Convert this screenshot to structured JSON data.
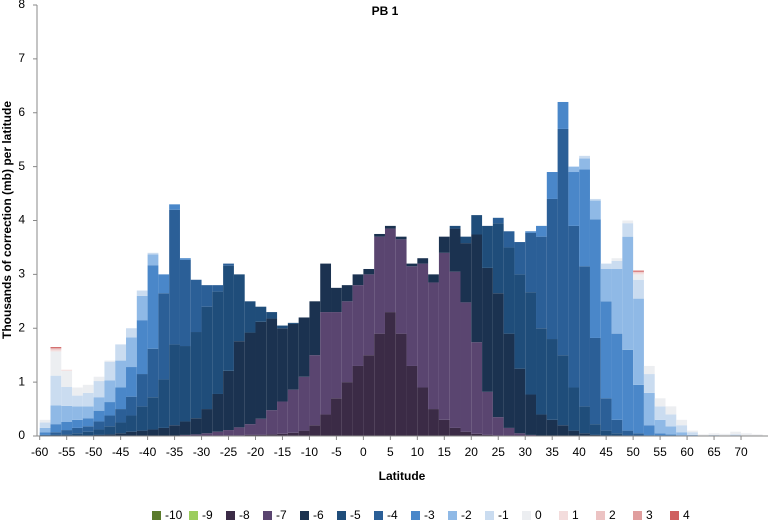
{
  "chart_data": {
    "type": "histogram",
    "title": "PB 1",
    "x_label": "Latitude",
    "y_label": "Thousands of correction (mb) per latitude",
    "bins": [
      -60,
      -58,
      -56,
      -54,
      -52,
      -50,
      -48,
      -46,
      -44,
      -42,
      -40,
      -38,
      -36,
      -34,
      -32,
      -30,
      -28,
      -26,
      -24,
      -22,
      -20,
      -18,
      -16,
      -14,
      -12,
      -10,
      -8,
      -6,
      -4,
      -2,
      0,
      2,
      4,
      6,
      8,
      10,
      12,
      14,
      16,
      18,
      20,
      22,
      24,
      26,
      28,
      30,
      32,
      34,
      36,
      38,
      40,
      42,
      44,
      46,
      48,
      50,
      52,
      54,
      56,
      58,
      60,
      62,
      64,
      66,
      68,
      70,
      72,
      74
    ],
    "stacked": true,
    "series": [
      {
        "name": "-10",
        "color": "#5b7b2c",
        "values": [
          0,
          0,
          0,
          0,
          0,
          0,
          0,
          0,
          0,
          0,
          0,
          0,
          0,
          0,
          0,
          0,
          0,
          0,
          0,
          0,
          0,
          0,
          0,
          0,
          0,
          0,
          0,
          0,
          0,
          0,
          0,
          0,
          0,
          0,
          0,
          0,
          0,
          0,
          0,
          0,
          0,
          0,
          0,
          0,
          0,
          0,
          0,
          0,
          0,
          0,
          0,
          0,
          0,
          0,
          0,
          0,
          0,
          0,
          0,
          0,
          0,
          0,
          0,
          0,
          0,
          0,
          0
        ]
      },
      {
        "name": "-9",
        "color": "#9ccd5e",
        "values": [
          0,
          0,
          0,
          0,
          0,
          0,
          0,
          0,
          0,
          0,
          0,
          0,
          0,
          0,
          0,
          0,
          0,
          0,
          0,
          0,
          0,
          0,
          0,
          0,
          0,
          0,
          0,
          0,
          0,
          0,
          0,
          0,
          0,
          0,
          0,
          0,
          0,
          0,
          0,
          0,
          0,
          0,
          0,
          0,
          0,
          0,
          0,
          0,
          0,
          0,
          0,
          0,
          0,
          0,
          0,
          0,
          0,
          0,
          0,
          0,
          0,
          0,
          0,
          0,
          0,
          0,
          0
        ]
      },
      {
        "name": "-8",
        "color": "#3b2b46",
        "values": [
          0,
          0,
          0,
          0,
          0,
          0,
          0,
          0,
          0,
          0,
          0,
          0,
          0,
          0,
          0,
          0,
          0,
          0.01,
          0.01,
          0.02,
          0.02,
          0.03,
          0.04,
          0.06,
          0.1,
          0.2,
          0.4,
          0.7,
          1.0,
          1.3,
          1.5,
          1.9,
          2.3,
          1.9,
          1.3,
          0.9,
          0.5,
          0.3,
          0.15,
          0.08,
          0.04,
          0.02,
          0,
          0,
          0,
          0,
          0,
          0,
          0,
          0,
          0,
          0,
          0,
          0,
          0,
          0,
          0,
          0,
          0,
          0,
          0,
          0,
          0,
          0,
          0,
          0,
          0
        ]
      },
      {
        "name": "-7",
        "color": "#5a4570",
        "values": [
          0,
          0,
          0,
          0,
          0,
          0,
          0,
          0,
          0,
          0,
          0,
          0,
          0,
          0.02,
          0.03,
          0.05,
          0.08,
          0.1,
          0.15,
          0.2,
          0.3,
          0.45,
          0.6,
          0.8,
          1.0,
          1.3,
          1.9,
          1.6,
          1.5,
          1.5,
          1.5,
          1.8,
          1.55,
          1.75,
          1.85,
          2.3,
          2.35,
          3.1,
          2.9,
          2.4,
          1.7,
          0.8,
          0.35,
          0.15,
          0.05,
          0.02,
          0,
          0,
          0,
          0,
          0,
          0,
          0,
          0,
          0,
          0,
          0,
          0,
          0,
          0,
          0,
          0,
          0,
          0,
          0,
          0,
          0
        ]
      },
      {
        "name": "-6",
        "color": "#1b3250",
        "values": [
          0,
          0,
          0,
          0,
          0,
          0.02,
          0.03,
          0.05,
          0.08,
          0.1,
          0.12,
          0.15,
          0.2,
          0.25,
          0.3,
          0.45,
          0.7,
          1.1,
          1.6,
          1.7,
          1.8,
          1.7,
          1.36,
          1.22,
          1.1,
          1.0,
          0.9,
          0.45,
          0.3,
          0.2,
          0.1,
          0.05,
          0.05,
          0.05,
          0.05,
          0.1,
          0.15,
          0.3,
          0.8,
          1.1,
          2.0,
          2.3,
          2.3,
          1.75,
          1.2,
          0.75,
          0.4,
          0.3,
          0.2,
          0.1,
          0.05,
          0.02,
          0,
          0,
          0,
          0,
          0,
          0,
          0,
          0,
          0,
          0,
          0,
          0,
          0,
          0,
          0
        ]
      },
      {
        "name": "-5",
        "color": "#1f4d7a",
        "values": [
          0,
          0.02,
          0.03,
          0.05,
          0.08,
          0.1,
          0.15,
          0.2,
          0.3,
          0.45,
          0.6,
          0.9,
          1.5,
          1.4,
          1.6,
          1.9,
          1.9,
          1.95,
          1.24,
          0.58,
          0.28,
          0.12,
          0.05,
          0.02,
          0,
          0,
          0,
          0,
          0,
          0,
          0,
          0,
          0,
          0,
          0,
          0,
          0,
          0,
          0.05,
          0.12,
          0.36,
          0.78,
          1.3,
          1.6,
          1.75,
          1.9,
          1.6,
          1.5,
          1.3,
          0.8,
          0.5,
          0.2,
          0.1,
          0.05,
          0,
          0,
          0,
          0,
          0,
          0,
          0,
          0,
          0,
          0,
          0,
          0,
          0
        ]
      },
      {
        "name": "-4",
        "color": "#2b5f97",
        "values": [
          0.02,
          0.05,
          0.08,
          0.1,
          0.1,
          0.15,
          0.2,
          0.25,
          0.35,
          0.6,
          0.9,
          1.6,
          2.5,
          1.6,
          0.97,
          0.4,
          0.12,
          0.04,
          0,
          0,
          0,
          0,
          0,
          0,
          0,
          0,
          0,
          0,
          0,
          0,
          0,
          0,
          0,
          0,
          0,
          0,
          0,
          0,
          0,
          0,
          0,
          0,
          0.1,
          0.3,
          0.6,
          1.1,
          1.7,
          2.6,
          4.2,
          3.0,
          2.6,
          1.6,
          0.6,
          0.25,
          0.1,
          0.05,
          0,
          0,
          0,
          0,
          0,
          0,
          0,
          0,
          0,
          0,
          0
        ]
      },
      {
        "name": "-3",
        "color": "#4a87c9",
        "values": [
          0.05,
          0.15,
          0.15,
          0.15,
          0.15,
          0.2,
          0.25,
          0.4,
          0.55,
          1.0,
          1.55,
          0.35,
          0.1,
          0.03,
          0,
          0,
          0,
          0,
          0,
          0,
          0,
          0,
          0,
          0,
          0,
          0,
          0,
          0,
          0,
          0,
          0,
          0,
          0,
          0,
          0,
          0,
          0,
          0,
          0,
          0,
          0,
          0,
          0,
          0,
          0,
          0.03,
          0.2,
          0.5,
          0.5,
          1.0,
          1.8,
          2.2,
          1.8,
          1.6,
          1.5,
          0.9,
          0.2,
          0.05,
          0.03,
          0,
          0,
          0,
          0,
          0,
          0,
          0,
          0
        ]
      },
      {
        "name": "-2",
        "color": "#8fb9e6",
        "values": [
          0.08,
          0.35,
          0.3,
          0.25,
          0.22,
          0.25,
          0.4,
          0.5,
          0.55,
          0.45,
          0.2,
          0,
          0,
          0,
          0,
          0,
          0,
          0,
          0,
          0,
          0,
          0,
          0,
          0,
          0,
          0,
          0,
          0,
          0,
          0,
          0,
          0,
          0,
          0,
          0,
          0,
          0,
          0,
          0,
          0,
          0,
          0,
          0,
          0,
          0,
          0,
          0,
          0,
          0,
          0.1,
          0.2,
          0.35,
          0.6,
          1.2,
          2.1,
          1.6,
          0.6,
          0.25,
          0.15,
          0.07,
          0.02,
          0,
          0,
          0,
          0,
          0,
          0
        ]
      },
      {
        "name": "-1",
        "color": "#cadcf0",
        "values": [
          0.1,
          0.55,
          0.35,
          0.2,
          0.25,
          0.3,
          0.35,
          0.3,
          0.17,
          0.1,
          0.03,
          0,
          0,
          0,
          0,
          0,
          0,
          0,
          0,
          0,
          0,
          0,
          0,
          0,
          0,
          0,
          0,
          0,
          0,
          0,
          0,
          0,
          0,
          0,
          0,
          0,
          0,
          0,
          0,
          0,
          0,
          0,
          0,
          0,
          0,
          0,
          0,
          0,
          0,
          0,
          0.05,
          0.03,
          0.1,
          0.15,
          0.25,
          0.35,
          0.35,
          0.25,
          0.22,
          0.13,
          0.05,
          0.01,
          0.02,
          0,
          0.03,
          0,
          0
        ]
      },
      {
        "name": "0",
        "color": "#eceef1",
        "values": [
          0.05,
          0.45,
          0.3,
          0.15,
          0.15,
          0.08,
          0.02,
          0,
          0,
          0,
          0,
          0,
          0,
          0,
          0,
          0,
          0,
          0,
          0,
          0,
          0,
          0,
          0,
          0,
          0,
          0,
          0,
          0,
          0,
          0,
          0,
          0,
          0,
          0,
          0,
          0,
          0,
          0,
          0,
          0,
          0,
          0,
          0,
          0,
          0,
          0,
          0,
          0,
          0,
          0,
          0,
          0,
          0,
          0.05,
          0.05,
          0.1,
          0.15,
          0.15,
          0.15,
          0.1,
          0.03,
          0.02,
          0.03,
          0.04,
          0.05,
          0.05,
          0.03
        ]
      },
      {
        "name": "1",
        "color": "#f3dcdc",
        "values": [
          0,
          0.03,
          0.02,
          0,
          0,
          0,
          0,
          0,
          0,
          0,
          0,
          0,
          0,
          0,
          0,
          0,
          0,
          0,
          0,
          0,
          0,
          0,
          0,
          0,
          0,
          0,
          0,
          0,
          0,
          0,
          0,
          0,
          0,
          0,
          0,
          0,
          0,
          0,
          0,
          0,
          0,
          0,
          0,
          0,
          0,
          0,
          0,
          0,
          0,
          0,
          0,
          0,
          0,
          0,
          0,
          0.03,
          0,
          0,
          0,
          0,
          0,
          0,
          0,
          0,
          0,
          0,
          0
        ]
      },
      {
        "name": "2",
        "color": "#ecc3c3",
        "values": [
          0,
          0.02,
          0,
          0,
          0,
          0,
          0,
          0,
          0,
          0,
          0,
          0,
          0,
          0,
          0,
          0,
          0,
          0,
          0,
          0,
          0,
          0,
          0,
          0,
          0,
          0,
          0,
          0,
          0,
          0,
          0,
          0,
          0,
          0,
          0,
          0,
          0,
          0,
          0,
          0,
          0,
          0,
          0,
          0,
          0,
          0,
          0,
          0,
          0,
          0,
          0,
          0,
          0,
          0,
          0,
          0.02,
          0,
          0,
          0,
          0,
          0,
          0,
          0,
          0,
          0,
          0,
          0
        ]
      },
      {
        "name": "3",
        "color": "#e09e9e",
        "values": [
          0,
          0.01,
          0,
          0,
          0,
          0,
          0,
          0,
          0,
          0,
          0,
          0,
          0,
          0,
          0,
          0,
          0,
          0,
          0,
          0,
          0,
          0,
          0,
          0,
          0,
          0,
          0,
          0,
          0,
          0,
          0,
          0,
          0,
          0,
          0,
          0,
          0,
          0,
          0,
          0,
          0,
          0,
          0,
          0,
          0,
          0,
          0,
          0,
          0,
          0,
          0,
          0,
          0,
          0,
          0,
          0,
          0,
          0,
          0,
          0,
          0,
          0,
          0,
          0,
          0,
          0,
          0
        ]
      },
      {
        "name": "4",
        "color": "#cf5f5f",
        "values": [
          0,
          0.02,
          0,
          0,
          0,
          0,
          0,
          0,
          0,
          0,
          0,
          0,
          0,
          0,
          0,
          0,
          0,
          0,
          0,
          0,
          0,
          0,
          0,
          0,
          0,
          0,
          0,
          0,
          0,
          0,
          0,
          0,
          0,
          0,
          0,
          0,
          0,
          0,
          0,
          0,
          0,
          0,
          0,
          0,
          0,
          0,
          0,
          0,
          0,
          0,
          0,
          0,
          0,
          0,
          0,
          0.02,
          0,
          0,
          0,
          0,
          0,
          0,
          0,
          0,
          0,
          0,
          0
        ]
      }
    ],
    "xlim": [
      -60.5,
      75
    ],
    "xticks": [
      -60,
      -55,
      -50,
      -45,
      -40,
      -35,
      -30,
      -25,
      -20,
      -15,
      -10,
      -5,
      0,
      5,
      10,
      15,
      20,
      25,
      30,
      35,
      40,
      45,
      50,
      55,
      60,
      65,
      70
    ],
    "ylim": [
      0,
      8
    ],
    "yticks": [
      0,
      1,
      2,
      3,
      4,
      5,
      6,
      7,
      8
    ],
    "grid": false,
    "legend": "bottom"
  }
}
